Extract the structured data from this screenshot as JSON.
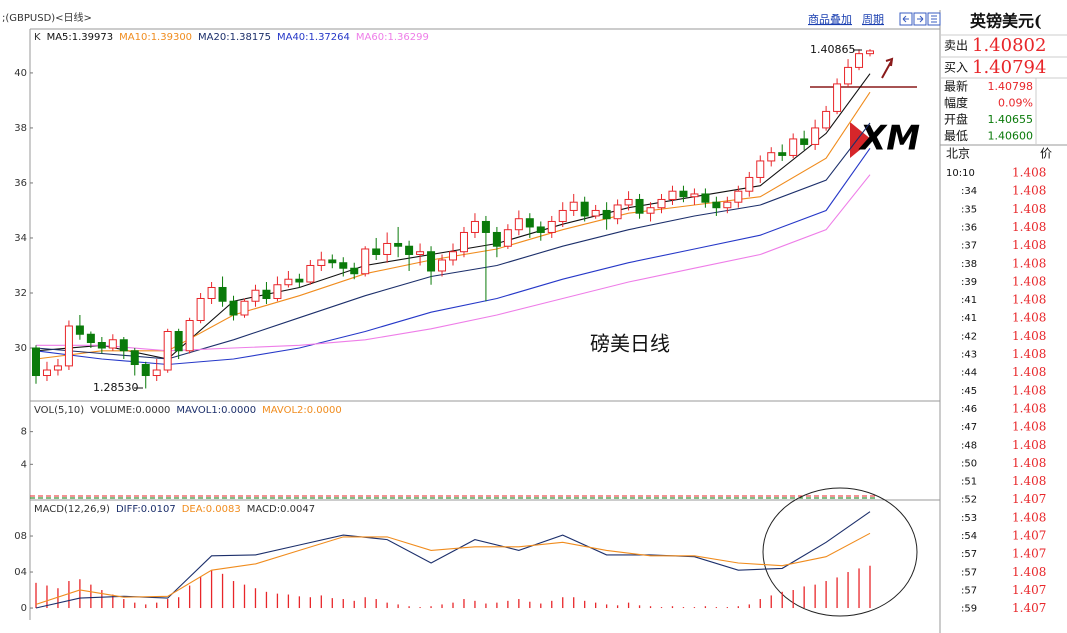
{
  "header": {
    "symbol": ";(GBPUSD)<日线>",
    "links": [
      "商品叠加",
      "周期"
    ]
  },
  "chart_data": [
    {
      "type": "candlestick",
      "legend_label": "K",
      "up_color": "#e8262a",
      "down_color": "#0a7a0a",
      "open": [
        1.3,
        1.29,
        1.292,
        1.2935,
        1.308,
        1.305,
        1.302,
        1.3,
        1.303,
        1.299,
        1.294,
        1.29,
        1.292,
        1.306,
        1.299,
        1.31,
        1.318,
        1.322,
        1.317,
        1.312,
        1.317,
        1.321,
        1.318,
        1.323,
        1.325,
        1.324,
        1.33,
        1.332,
        1.331,
        1.329,
        1.327,
        1.336,
        1.334,
        1.338,
        1.337,
        1.334,
        1.335,
        1.328,
        1.332,
        1.335,
        1.342,
        1.346,
        1.342,
        1.337,
        1.343,
        1.347,
        1.344,
        1.342,
        1.346,
        1.35,
        1.353,
        1.348,
        1.35,
        1.347,
        1.352,
        1.354,
        1.349,
        1.351,
        1.354,
        1.357,
        1.355,
        1.356,
        1.353,
        1.351,
        1.353,
        1.357,
        1.362,
        1.368,
        1.371,
        1.37,
        1.376,
        1.374,
        1.38,
        1.386,
        1.396,
        1.402,
        1.407
      ],
      "high": [
        1.301,
        1.295,
        1.296,
        1.31,
        1.312,
        1.306,
        1.304,
        1.305,
        1.304,
        1.3,
        1.295,
        1.296,
        1.307,
        1.307,
        1.311,
        1.32,
        1.324,
        1.326,
        1.319,
        1.318,
        1.323,
        1.324,
        1.326,
        1.328,
        1.327,
        1.332,
        1.335,
        1.334,
        1.333,
        1.331,
        1.337,
        1.34,
        1.342,
        1.344,
        1.339,
        1.338,
        1.337,
        1.334,
        1.338,
        1.344,
        1.349,
        1.348,
        1.344,
        1.345,
        1.35,
        1.349,
        1.346,
        1.348,
        1.353,
        1.356,
        1.355,
        1.352,
        1.353,
        1.354,
        1.357,
        1.356,
        1.353,
        1.356,
        1.359,
        1.359,
        1.358,
        1.358,
        1.355,
        1.355,
        1.359,
        1.364,
        1.37,
        1.373,
        1.374,
        1.378,
        1.379,
        1.383,
        1.388,
        1.398,
        1.405,
        1.4086,
        1.40865
      ],
      "low": [
        1.287,
        1.288,
        1.29,
        1.292,
        1.303,
        1.3,
        1.298,
        1.299,
        1.296,
        1.29,
        1.2853,
        1.288,
        1.291,
        1.296,
        1.298,
        1.309,
        1.316,
        1.315,
        1.31,
        1.311,
        1.315,
        1.316,
        1.317,
        1.322,
        1.322,
        1.323,
        1.328,
        1.329,
        1.326,
        1.325,
        1.326,
        1.332,
        1.331,
        1.333,
        1.328,
        1.33,
        1.323,
        1.326,
        1.33,
        1.333,
        1.34,
        1.317,
        1.333,
        1.336,
        1.341,
        1.34,
        1.339,
        1.34,
        1.344,
        1.348,
        1.346,
        1.347,
        1.343,
        1.345,
        1.35,
        1.347,
        1.346,
        1.349,
        1.352,
        1.353,
        1.352,
        1.351,
        1.348,
        1.349,
        1.351,
        1.355,
        1.36,
        1.366,
        1.368,
        1.369,
        1.372,
        1.372,
        1.379,
        1.385,
        1.395,
        1.401,
        1.406
      ],
      "close": [
        1.29,
        1.292,
        1.2935,
        1.308,
        1.305,
        1.302,
        1.3,
        1.303,
        1.299,
        1.294,
        1.29,
        1.292,
        1.306,
        1.299,
        1.31,
        1.318,
        1.322,
        1.317,
        1.312,
        1.317,
        1.321,
        1.318,
        1.323,
        1.325,
        1.324,
        1.33,
        1.332,
        1.331,
        1.329,
        1.327,
        1.336,
        1.334,
        1.338,
        1.337,
        1.334,
        1.335,
        1.328,
        1.332,
        1.335,
        1.342,
        1.346,
        1.342,
        1.337,
        1.343,
        1.347,
        1.344,
        1.342,
        1.346,
        1.35,
        1.353,
        1.348,
        1.35,
        1.347,
        1.352,
        1.354,
        1.349,
        1.351,
        1.354,
        1.357,
        1.355,
        1.356,
        1.353,
        1.351,
        1.353,
        1.357,
        1.362,
        1.368,
        1.371,
        1.37,
        1.376,
        1.374,
        1.38,
        1.386,
        1.396,
        1.402,
        1.407,
        1.408
      ],
      "ylim": [
        1.2811,
        1.4156
      ],
      "yticks": [
        {
          "value": 1.4,
          "label": "40"
        },
        {
          "value": 1.38,
          "label": "38"
        },
        {
          "value": 1.36,
          "label": "36"
        },
        {
          "value": 1.34,
          "label": "34"
        },
        {
          "value": 1.32,
          "label": "32"
        },
        {
          "value": 1.3,
          "label": "30"
        }
      ],
      "series": [
        {
          "name": "MA5:1.39973",
          "color": "#111111",
          "x": [
            0,
            6,
            12,
            18,
            24,
            30,
            36,
            42,
            48,
            54,
            60,
            66,
            72,
            76
          ],
          "values": [
            1.299,
            1.301,
            1.296,
            1.317,
            1.322,
            1.33,
            1.334,
            1.338,
            1.345,
            1.351,
            1.355,
            1.359,
            1.378,
            1.3997
          ]
        },
        {
          "name": "MA10:1.39300",
          "color": "#f08c1e",
          "x": [
            0,
            6,
            12,
            18,
            24,
            30,
            36,
            42,
            48,
            54,
            60,
            66,
            72,
            76
          ],
          "values": [
            1.296,
            1.299,
            1.299,
            1.312,
            1.319,
            1.327,
            1.332,
            1.336,
            1.343,
            1.349,
            1.352,
            1.355,
            1.369,
            1.393
          ]
        },
        {
          "name": "MA20:1.38175",
          "color": "#1c2f6b",
          "x": [
            0,
            6,
            12,
            18,
            24,
            30,
            36,
            42,
            48,
            54,
            60,
            66,
            72,
            76
          ],
          "values": [
            1.3,
            1.298,
            1.296,
            1.303,
            1.311,
            1.319,
            1.326,
            1.33,
            1.337,
            1.343,
            1.348,
            1.352,
            1.361,
            1.3818
          ]
        },
        {
          "name": "MA40:1.37264",
          "color": "#2638c8",
          "x": [
            0,
            6,
            12,
            18,
            24,
            30,
            36,
            42,
            48,
            54,
            60,
            66,
            72,
            76
          ],
          "values": [
            1.299,
            1.296,
            1.294,
            1.296,
            1.3,
            1.306,
            1.313,
            1.318,
            1.325,
            1.331,
            1.336,
            1.341,
            1.35,
            1.3726
          ]
        },
        {
          "name": "MA60:1.36299",
          "color": "#ee7de8",
          "x": [
            0,
            6,
            12,
            18,
            24,
            30,
            36,
            42,
            48,
            54,
            60,
            66,
            72,
            76
          ],
          "values": [
            1.301,
            1.301,
            1.299,
            1.3,
            1.301,
            1.303,
            1.307,
            1.312,
            1.318,
            1.324,
            1.329,
            1.334,
            1.343,
            1.363
          ]
        }
      ],
      "annotations": [
        "1.40865",
        "1.28530",
        "磅美日线"
      ]
    },
    {
      "type": "volume",
      "legend": [
        "VOL(5,10)",
        "VOLUME:0.0000",
        "MAVOL1:0.0000",
        "MAVOL2:0.0000"
      ],
      "legend_colors": [
        "#333333",
        "#333333",
        "#1c2f6b",
        "#f08c1e"
      ],
      "ylim": [
        0,
        11.75
      ],
      "yticks": [
        8,
        4
      ]
    },
    {
      "type": "macd",
      "legend": [
        "MACD(12,26,9)",
        "DIFF:0.0107",
        "DEA:0.0083",
        "MACD:0.0047"
      ],
      "legend_colors": [
        "#333333",
        "#1c2f6b",
        "#f08c1e",
        "#333333"
      ],
      "ylim": [
        -0.00133,
        0.01178
      ],
      "yticks": [
        {
          "value": 0.008,
          "label": "08"
        },
        {
          "value": 0.004,
          "label": "04"
        },
        0
      ],
      "series": [
        {
          "name": "DIFF",
          "color": "#1c2f6b",
          "x": [
            0,
            4,
            8,
            12,
            16,
            20,
            24,
            28,
            32,
            36,
            40,
            44,
            48,
            52,
            56,
            60,
            64,
            68,
            72,
            76
          ],
          "values": [
            0.0,
            0.0011,
            0.0013,
            0.0011,
            0.0058,
            0.0059,
            0.007,
            0.0081,
            0.0076,
            0.005,
            0.0076,
            0.0064,
            0.0081,
            0.0059,
            0.0059,
            0.0057,
            0.0042,
            0.0044,
            0.0073,
            0.0107
          ]
        },
        {
          "name": "DEA",
          "color": "#f08c1e",
          "x": [
            0,
            4,
            8,
            12,
            16,
            20,
            24,
            28,
            32,
            36,
            40,
            44,
            48,
            52,
            56,
            60,
            64,
            68,
            72,
            76
          ],
          "values": [
            0.0004,
            0.002,
            0.0012,
            0.0013,
            0.0042,
            0.0049,
            0.0064,
            0.0079,
            0.0079,
            0.0064,
            0.0068,
            0.0068,
            0.0073,
            0.0064,
            0.0058,
            0.0058,
            0.005,
            0.0047,
            0.0057,
            0.0083
          ]
        }
      ],
      "bar_color": "#e8262a",
      "values": [
        0.0028,
        0.0025,
        0.0022,
        0.003,
        0.0032,
        0.0026,
        0.002,
        0.0015,
        0.001,
        0.0006,
        0.0004,
        0.0006,
        0.001,
        0.0012,
        0.0025,
        0.0035,
        0.0042,
        0.0038,
        0.003,
        0.0026,
        0.0022,
        0.0018,
        0.0016,
        0.0015,
        0.0013,
        0.0012,
        0.0014,
        0.0011,
        0.001,
        0.0008,
        0.0012,
        0.001,
        0.0006,
        0.0004,
        0.0002,
        0.0001,
        0.0002,
        0.0004,
        0.0006,
        0.001,
        0.0008,
        0.0005,
        0.0006,
        0.0008,
        0.001,
        0.0007,
        0.0005,
        0.0008,
        0.0012,
        0.0012,
        0.0008,
        0.0006,
        0.0004,
        0.0003,
        0.0006,
        0.0003,
        0.0002,
        0.0001,
        0.0002,
        0.0001,
        0.0001,
        0.0002,
        0.0001,
        0.0001,
        0.0002,
        0.0004,
        0.001,
        0.0014,
        0.0018,
        0.002,
        0.0024,
        0.0026,
        0.003,
        0.0034,
        0.004,
        0.0044,
        0.0047
      ]
    }
  ],
  "quote_panel": {
    "title": "英镑美元(",
    "quotes": [
      {
        "label": "卖出",
        "value": "1.40802"
      },
      {
        "label": "买入",
        "value": "1.40794"
      }
    ],
    "stats": [
      {
        "label": "最新",
        "value": "1.40798",
        "color": "#e8262a"
      },
      {
        "label": "幅度",
        "value": "0.09%",
        "color": "#e8262a"
      },
      {
        "label": "开盘",
        "value": "1.40655",
        "color": "#0a7a0a"
      },
      {
        "label": "最低",
        "value": "1.40600",
        "color": "#0a7a0a"
      }
    ],
    "ticks_header": [
      "北京",
      "价"
    ],
    "ticks": [
      [
        "10:10",
        "1.408"
      ],
      [
        ":34",
        "1.408"
      ],
      [
        ":35",
        "1.408"
      ],
      [
        ":36",
        "1.408"
      ],
      [
        ":37",
        "1.408"
      ],
      [
        ":38",
        "1.408"
      ],
      [
        ":39",
        "1.408"
      ],
      [
        ":41",
        "1.408"
      ],
      [
        ":41",
        "1.408"
      ],
      [
        ":42",
        "1.408"
      ],
      [
        ":43",
        "1.408"
      ],
      [
        ":44",
        "1.408"
      ],
      [
        ":45",
        "1.408"
      ],
      [
        ":46",
        "1.408"
      ],
      [
        ":47",
        "1.408"
      ],
      [
        ":48",
        "1.408"
      ],
      [
        ":50",
        "1.408"
      ],
      [
        ":51",
        "1.408"
      ],
      [
        ":52",
        "1.407"
      ],
      [
        ":53",
        "1.408"
      ],
      [
        ":54",
        "1.407"
      ],
      [
        ":57",
        "1.407"
      ],
      [
        ":57",
        "1.408"
      ],
      [
        ":57",
        "1.407"
      ],
      [
        ":59",
        "1.407"
      ]
    ]
  }
}
